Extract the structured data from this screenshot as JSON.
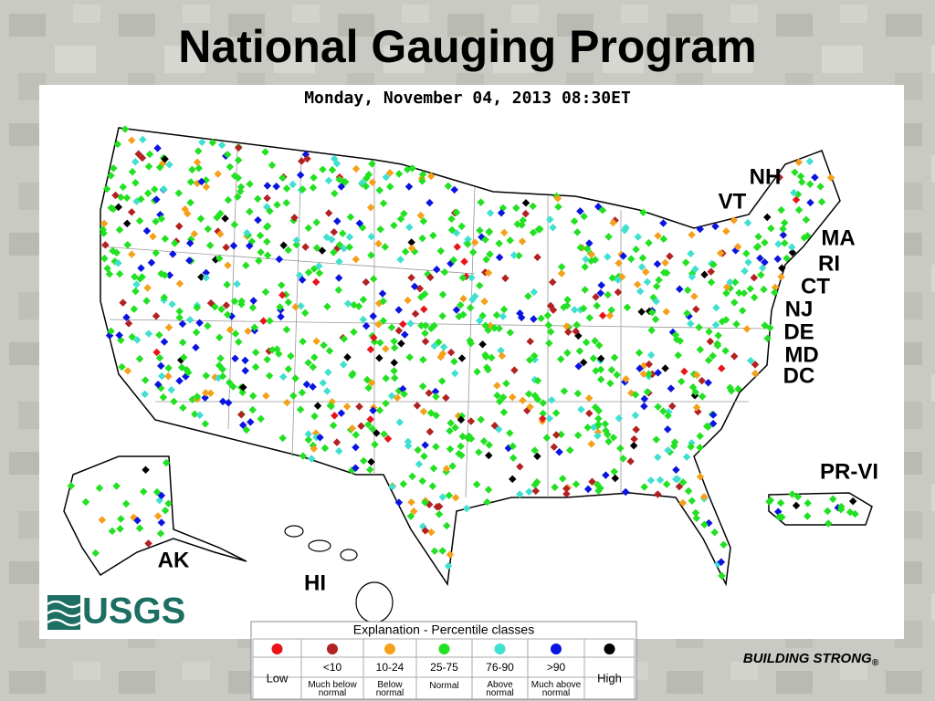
{
  "title": "National Gauging Program",
  "map": {
    "timestamp": "Monday, November 04, 2013 08:30ET",
    "labels": [
      "NH",
      "VT",
      "MA",
      "RI",
      "CT",
      "NJ",
      "DE",
      "MD",
      "DC",
      "PR-VI",
      "AK",
      "HI"
    ],
    "logo": "USGS"
  },
  "legend": {
    "title": "Explanation - Percentile classes",
    "classes": [
      {
        "color": "#e8141c",
        "description": "Low"
      },
      {
        "color": "#b22222",
        "range": "<10",
        "description": "Much below normal"
      },
      {
        "color": "#f5a01a",
        "range": "10-24",
        "description": "Below normal"
      },
      {
        "color": "#22e022",
        "range": "25-75",
        "description": "Normal"
      },
      {
        "color": "#40e0d0",
        "range": "76-90",
        "description": "Above normal"
      },
      {
        "color": "#0a14e0",
        "range": ">90",
        "description": "Much above normal"
      },
      {
        "color": "#000000",
        "description": "High"
      }
    ]
  },
  "footer": {
    "text": "BUILDING STRONG",
    "mark": "®"
  }
}
